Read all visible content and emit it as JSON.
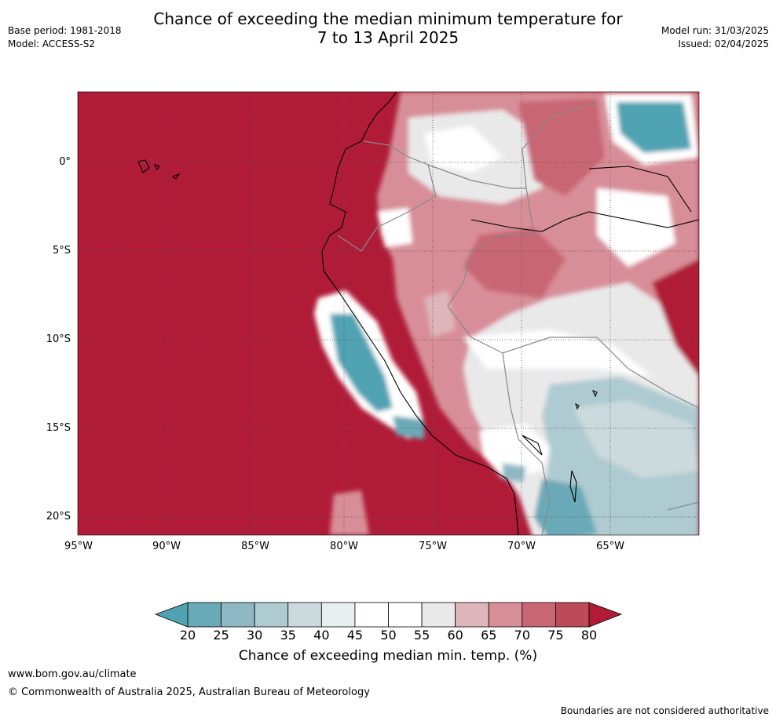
{
  "header": {
    "title_line1": "Chance of exceeding the median minimum temperature for",
    "title_line2": "7 to 13 April 2025",
    "base_period": "Base period: 1981-2018",
    "model": "Model: ACCESS-S2",
    "model_run": "Model run: 31/03/2025",
    "issued": "Issued: 02/04/2025"
  },
  "map": {
    "lat_labels": [
      "0°",
      "5°S",
      "10°S",
      "15°S",
      "20°S"
    ],
    "lon_labels": [
      "95°W",
      "90°W",
      "85°W",
      "80°W",
      "75°W",
      "70°W",
      "65°W"
    ],
    "lon_range": [
      -95,
      -60
    ],
    "lat_range": [
      -21,
      4
    ]
  },
  "colorbar": {
    "ticks": [
      "20",
      "25",
      "30",
      "35",
      "40",
      "45",
      "50",
      "55",
      "60",
      "65",
      "70",
      "75",
      "80"
    ],
    "colors": [
      "#6aa9b7",
      "#8fb8c4",
      "#aecbd1",
      "#cbdadc",
      "#e8eff1",
      "#ffffff",
      "#ffffff",
      "#eae9ea",
      "#dfb5bc",
      "#d88e98",
      "#c86673",
      "#bc4a59"
    ],
    "under_color": "#4fa3b3",
    "over_color": "#b01c38",
    "title": "Chance of exceeding median min. temp. (%)"
  },
  "footer": {
    "url": "www.bom.gov.au/climate",
    "copyright": "© Commonwealth of Australia 2025, Australian Bureau of Meteorology",
    "note": "Boundaries are not considered authoritative"
  }
}
